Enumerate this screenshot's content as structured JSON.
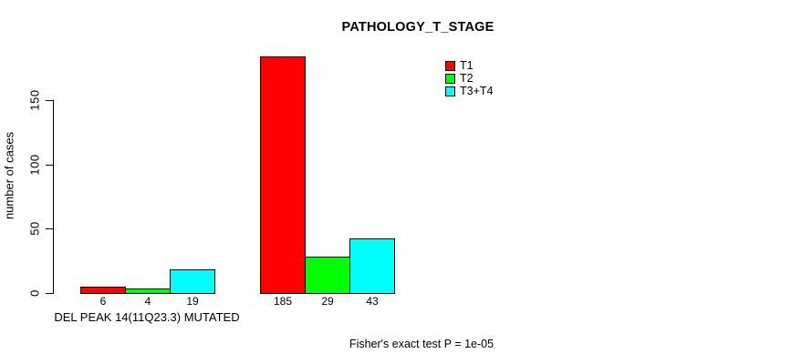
{
  "chart_data": {
    "type": "bar",
    "title": "PATHOLOGY_T_STAGE",
    "ylabel": "number of cases",
    "xlabel": "",
    "ylim": [
      0,
      150
    ],
    "yticks": [
      0,
      50,
      100,
      150
    ],
    "grid": false,
    "legend_position": "top-right",
    "bar_border_color": "#000000",
    "categories": [
      "DEL PEAK 14(11Q23.3) MUTATED",
      ""
    ],
    "series": [
      {
        "name": "T1",
        "color": "#ff0000",
        "values": [
          6,
          185
        ]
      },
      {
        "name": "T2",
        "color": "#00ff00",
        "values": [
          4,
          29
        ]
      },
      {
        "name": "T3+T4",
        "color": "#00ffff",
        "values": [
          19,
          43
        ]
      }
    ],
    "value_labels_under_bars": true,
    "annotation": "Fisher's exact test P = 1e-05"
  }
}
